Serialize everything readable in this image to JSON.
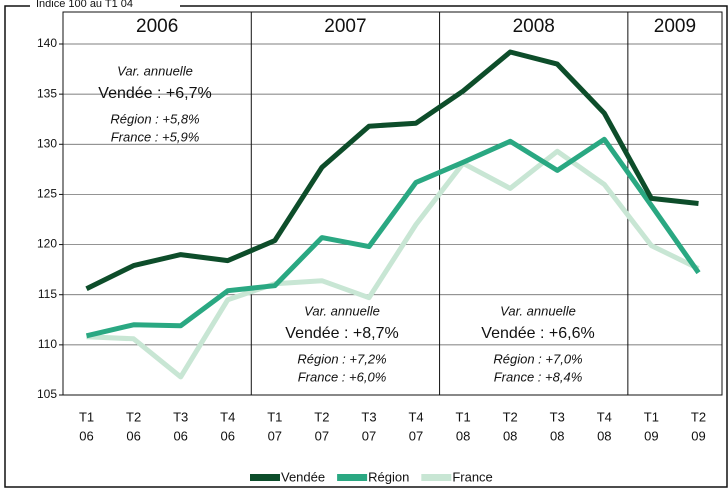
{
  "chart_data": {
    "type": "line",
    "title": "Indice 100 au T1 04",
    "categories": [
      [
        "T1",
        "06"
      ],
      [
        "T2",
        "06"
      ],
      [
        "T3",
        "06"
      ],
      [
        "T4",
        "06"
      ],
      [
        "T1",
        "07"
      ],
      [
        "T2",
        "07"
      ],
      [
        "T3",
        "07"
      ],
      [
        "T4",
        "07"
      ],
      [
        "T1",
        "08"
      ],
      [
        "T2",
        "08"
      ],
      [
        "T3",
        "08"
      ],
      [
        "T4",
        "08"
      ],
      [
        "T1",
        "09"
      ],
      [
        "T2",
        "09"
      ]
    ],
    "periods": [
      "2006",
      "2007",
      "2008",
      "2009"
    ],
    "series": [
      {
        "name": "Vendée",
        "color": "#0d4d2a",
        "values": [
          115.6,
          117.9,
          119.0,
          118.4,
          120.4,
          127.7,
          131.8,
          132.1,
          135.3,
          139.2,
          138.0,
          133.1,
          124.6,
          124.1
        ]
      },
      {
        "name": "Région",
        "color": "#2aa882",
        "values": [
          110.9,
          112.0,
          111.9,
          115.4,
          115.9,
          120.7,
          119.8,
          126.2,
          128.2,
          130.3,
          127.4,
          130.5,
          123.9,
          117.2
        ]
      },
      {
        "name": "France",
        "color": "#c8e6d4",
        "values": [
          110.8,
          110.6,
          106.8,
          114.5,
          116.1,
          116.4,
          114.7,
          122.0,
          128.1,
          125.6,
          129.3,
          126.0,
          119.9,
          117.6
        ]
      }
    ],
    "annotations": [
      {
        "title": "Var. annuelle",
        "main": "Vendée : +6,7%",
        "lines": [
          "Région : +5,8%",
          "France : +5,9%"
        ]
      },
      {
        "title": "Var. annuelle",
        "main": "Vendée : +8,7%",
        "lines": [
          "Région : +7,2%",
          "France : +6,0%"
        ]
      },
      {
        "title": "Var. annuelle",
        "main": "Vendée : +6,6%",
        "lines": [
          "Région : +7,0%",
          "France : +8,4%"
        ]
      }
    ],
    "ylim": [
      105,
      140
    ],
    "yticks": [
      105,
      110,
      115,
      120,
      125,
      130,
      135,
      140
    ],
    "grid": true,
    "legend": "bottom"
  }
}
